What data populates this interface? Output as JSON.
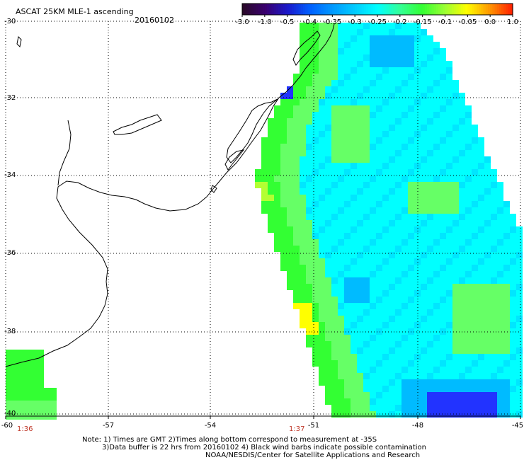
{
  "header": {
    "title": "ASCAT 25KM MLE-1 ascending",
    "date": "20160102"
  },
  "colorbar": {
    "tick_labels": [
      "-3.0",
      "-1.0",
      "-0.5",
      "-0.4",
      "-0.35",
      "-0.3",
      "-0.25",
      "-0.2",
      "-0.15",
      "-0.1",
      "-0.05",
      "0.0",
      "1.0"
    ],
    "colors": [
      "#2a0a2a",
      "#3a0070",
      "#1a1acc",
      "#0060ff",
      "#0099ff",
      "#00ccff",
      "#00ffff",
      "#33ff99",
      "#33ff33",
      "#99ff33",
      "#ffff00",
      "#ff9900",
      "#ff2200"
    ]
  },
  "map": {
    "lat_labels": [
      "-30",
      "-32",
      "-34",
      "-36",
      "-38",
      "-40"
    ],
    "lon_labels": [
      "-60",
      "-57",
      "-54",
      "-51",
      "-48",
      "-45"
    ],
    "time_labels": [
      "1:36",
      "1:37"
    ],
    "grid": true,
    "colors": {
      "cyan": "#00ffff",
      "aqua": "#00e6ff",
      "green": "#33ff33",
      "lightgreen": "#66ff66",
      "yellowgreen": "#b3ff33",
      "yellow": "#ffff00",
      "orange": "#ff9900",
      "blue": "#2233ff",
      "skyblue": "#00bbff"
    }
  },
  "notes": {
    "line1": "Note: 1) Times are GMT 2)Times along bottom correspond to measurement at -35S",
    "line2": "3)Data buffer is 22 hrs from 20160102 4) Black wind barbs indicate possible contamination",
    "line3": "NOAA/NESDIS/Center for Satellite Applications and Research"
  }
}
